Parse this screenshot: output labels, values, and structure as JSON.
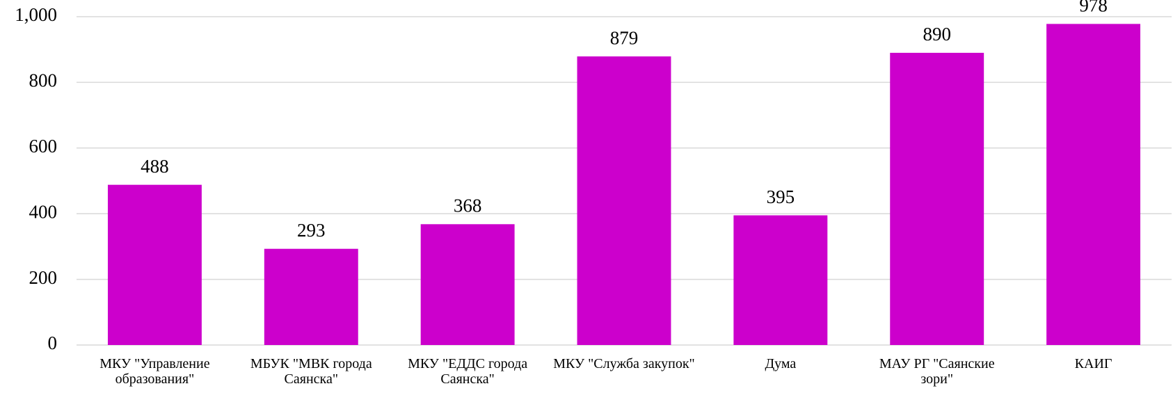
{
  "chart_data": {
    "type": "bar",
    "categories": [
      "МКУ \"Управление образования\"",
      "МБУК \"МВК города Саянска\"",
      "МКУ \"ЕДДС города Саянска\"",
      "МКУ \"Служба закупок\"",
      "Дума",
      "МАУ РГ \"Саянские зори\"",
      "КАИГ"
    ],
    "values": [
      488,
      293,
      368,
      879,
      395,
      890,
      978
    ],
    "color": "#cc00cc",
    "ylim": [
      0,
      1000
    ],
    "yticks": [
      0,
      200,
      400,
      600,
      800,
      {
        "value": 1000,
        "label": "1,000"
      }
    ],
    "grid": true
  }
}
